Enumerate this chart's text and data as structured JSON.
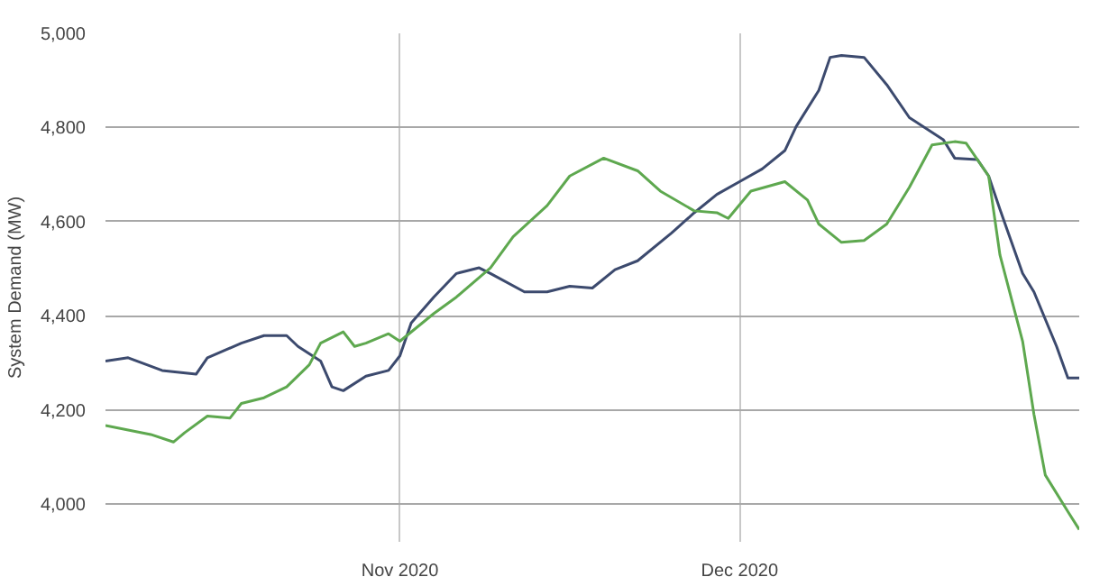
{
  "chart_data": {
    "type": "line",
    "ylabel": "System Demand (MW)",
    "grid": true,
    "marker": "none",
    "line_style": "solid",
    "xlim": [
      "2020-10-06",
      "2020-12-31"
    ],
    "ylim": [
      3920,
      5000
    ],
    "xticks": [
      {
        "value": "2020-11-01",
        "label": "Nov 2020"
      },
      {
        "value": "2020-12-01",
        "label": "Dec 2020"
      }
    ],
    "yticks": [
      {
        "value": 4000,
        "label": "4,000"
      },
      {
        "value": 4200,
        "label": "4,200"
      },
      {
        "value": 4400,
        "label": "4,400"
      },
      {
        "value": 4600,
        "label": "4,600"
      },
      {
        "value": 4800,
        "label": "4,800"
      },
      {
        "value": 5000,
        "label": "5,000"
      }
    ],
    "series": [
      {
        "color": "#3c4a6e",
        "x": [
          "2020-10-06",
          "2020-10-08",
          "2020-10-11",
          "2020-10-14",
          "2020-10-15",
          "2020-10-18",
          "2020-10-20",
          "2020-10-22",
          "2020-10-23",
          "2020-10-25",
          "2020-10-26",
          "2020-10-27",
          "2020-10-29",
          "2020-10-31",
          "2020-11-01",
          "2020-11-02",
          "2020-11-04",
          "2020-11-06",
          "2020-11-08",
          "2020-11-09",
          "2020-11-12",
          "2020-11-14",
          "2020-11-16",
          "2020-11-18",
          "2020-11-20",
          "2020-11-22",
          "2020-11-25",
          "2020-11-27",
          "2020-11-29",
          "2020-12-01",
          "2020-12-03",
          "2020-12-05",
          "2020-12-06",
          "2020-12-08",
          "2020-12-09",
          "2020-12-10",
          "2020-12-12",
          "2020-12-14",
          "2020-12-16",
          "2020-12-19",
          "2020-12-20",
          "2020-12-22",
          "2020-12-23",
          "2020-12-24",
          "2020-12-26",
          "2020-12-27",
          "2020-12-29",
          "2020-12-30",
          "2020-12-31"
        ],
        "values": [
          4304,
          4311,
          4284,
          4276,
          4311,
          4342,
          4358,
          4358,
          4335,
          4304,
          4249,
          4241,
          4272,
          4284,
          4315,
          4385,
          4440,
          4490,
          4502,
          4490,
          4451,
          4451,
          4463,
          4459,
          4498,
          4517,
          4576,
          4619,
          4658,
          4685,
          4712,
          4751,
          4802,
          4879,
          4949,
          4953,
          4949,
          4891,
          4821,
          4774,
          4735,
          4732,
          4697,
          4626,
          4490,
          4451,
          4335,
          4268,
          4268
        ]
      },
      {
        "color": "#5ea84f",
        "x": [
          "2020-10-06",
          "2020-10-10",
          "2020-10-12",
          "2020-10-13",
          "2020-10-15",
          "2020-10-17",
          "2020-10-18",
          "2020-10-20",
          "2020-10-22",
          "2020-10-24",
          "2020-10-25",
          "2020-10-27",
          "2020-10-28",
          "2020-10-29",
          "2020-10-31",
          "2020-11-01",
          "2020-11-04",
          "2020-11-06",
          "2020-11-09",
          "2020-11-11",
          "2020-11-14",
          "2020-11-16",
          "2020-11-19",
          "2020-11-22",
          "2020-11-24",
          "2020-11-27",
          "2020-11-29",
          "2020-11-30",
          "2020-12-02",
          "2020-12-05",
          "2020-12-07",
          "2020-12-08",
          "2020-12-10",
          "2020-12-12",
          "2020-12-14",
          "2020-12-16",
          "2020-12-18",
          "2020-12-20",
          "2020-12-21",
          "2020-12-23",
          "2020-12-24",
          "2020-12-26",
          "2020-12-27",
          "2020-12-28",
          "2020-12-30",
          "2020-12-31"
        ],
        "values": [
          4167,
          4148,
          4132,
          4152,
          4187,
          4183,
          4214,
          4226,
          4249,
          4296,
          4342,
          4366,
          4335,
          4342,
          4362,
          4346,
          4405,
          4440,
          4502,
          4568,
          4634,
          4697,
          4735,
          4708,
          4665,
          4623,
          4619,
          4607,
          4665,
          4685,
          4646,
          4595,
          4556,
          4560,
          4595,
          4673,
          4763,
          4770,
          4767,
          4697,
          4529,
          4346,
          4191,
          4062,
          3984,
          3946
        ]
      }
    ]
  }
}
